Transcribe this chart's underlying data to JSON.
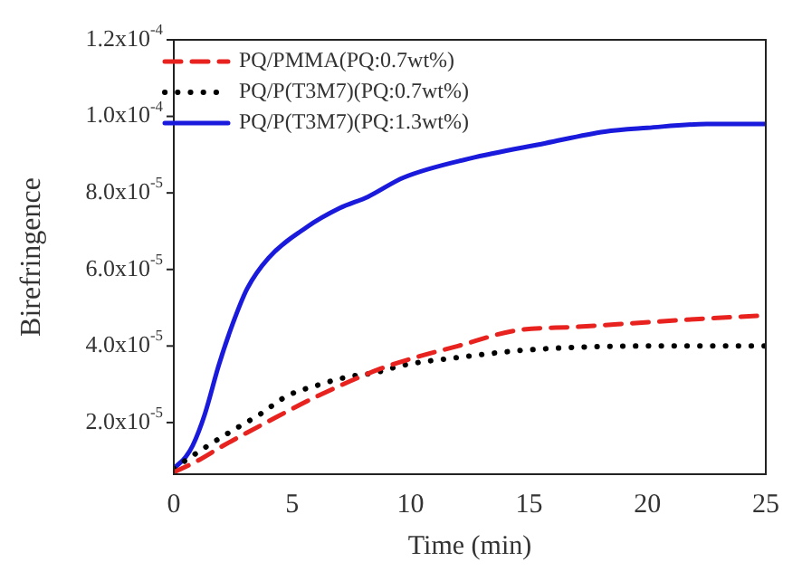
{
  "chart_data": {
    "type": "line",
    "xlabel": "Time (min)",
    "ylabel": "Birefringence",
    "xlim": [
      0,
      25
    ],
    "xticks": [
      0,
      5,
      10,
      15,
      20,
      25
    ],
    "ylim": [
      6.5e-06,
      0.00012
    ],
    "yticks": [
      {
        "value": 2e-05,
        "label": "2.0x10$^{-5}$"
      },
      {
        "value": 4e-05,
        "label": "4.0x10$^{-5}$"
      },
      {
        "value": 6e-05,
        "label": "6.0x10$^{-5}$"
      },
      {
        "value": 8e-05,
        "label": "8.0x10$^{-5}$"
      },
      {
        "value": 0.0001,
        "label": "1.0x10$^{-4}$"
      },
      {
        "value": 0.00012,
        "label": "1.2x10$^{-4}$"
      }
    ],
    "legend": "top left",
    "grid": false,
    "marker": "none",
    "series": [
      {
        "name": "PQ/PMMA(PQ:0.7wt%)",
        "color": "#e8221e",
        "line_style": "dashed",
        "x": [
          0,
          1,
          2.1,
          3.9,
          6.1,
          8.7,
          10.2,
          12,
          14.4,
          17,
          19.5,
          22,
          25
        ],
        "values": [
          7e-06,
          1e-05,
          1.4e-05,
          2e-05,
          2.7e-05,
          3.4e-05,
          3.7e-05,
          4e-05,
          4.4e-05,
          4.5e-05,
          4.6e-05,
          4.7e-05,
          4.8e-05
        ]
      },
      {
        "name": "PQ/P(T3M7)(PQ:0.7wt%)",
        "color": "#000000",
        "line_style": "dotted",
        "x": [
          0,
          1.2,
          2.5,
          3.6,
          4.8,
          6.2,
          7.4,
          8.5,
          9.7,
          12,
          15,
          20,
          25
        ],
        "values": [
          8e-06,
          1.3e-05,
          1.8e-05,
          2.2e-05,
          2.7e-05,
          3e-05,
          3.2e-05,
          3.3e-05,
          3.5e-05,
          3.7e-05,
          3.9e-05,
          4e-05,
          4e-05
        ]
      },
      {
        "name": "PQ/P(T3M7)(PQ:1.3wt%)",
        "color": "#1a1adc",
        "line_style": "solid",
        "x": [
          0,
          0.5,
          0.8,
          1.3,
          1.9,
          2.5,
          3.1,
          4,
          5.6,
          7,
          8.2,
          9.7,
          12.5,
          15.7,
          18.2,
          20,
          22.5,
          25
        ],
        "values": [
          8e-06,
          1.1e-05,
          1.4e-05,
          2.2e-05,
          3.5e-05,
          4.6e-05,
          5.5e-05,
          6.3e-05,
          7.1e-05,
          7.6e-05,
          7.9e-05,
          8.4e-05,
          8.9e-05,
          9.3e-05,
          9.6e-05,
          9.7e-05,
          9.8e-05,
          9.8e-05
        ]
      }
    ]
  }
}
